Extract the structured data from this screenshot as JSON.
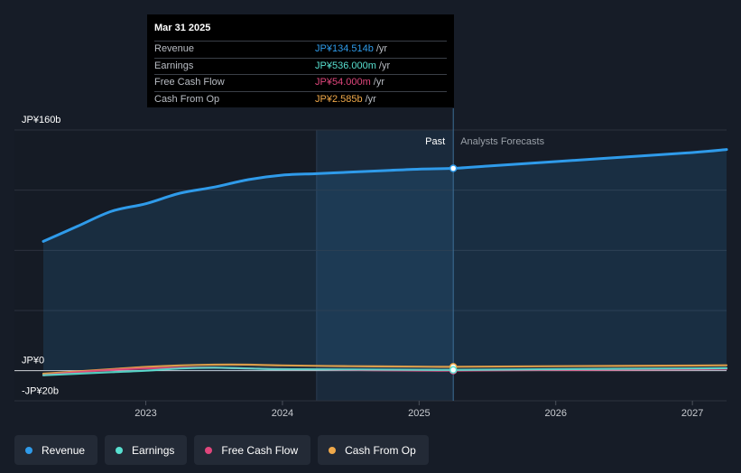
{
  "tooltip": {
    "date": "Mar 31 2025",
    "rows": [
      {
        "label": "Revenue",
        "value": "JP¥134.514b",
        "unit": "/yr",
        "color": "#2f9bea"
      },
      {
        "label": "Earnings",
        "value": "JP¥536.000m",
        "unit": "/yr",
        "color": "#58e0d0"
      },
      {
        "label": "Free Cash Flow",
        "value": "JP¥54.000m",
        "unit": "/yr",
        "color": "#e0467c"
      },
      {
        "label": "Cash From Op",
        "value": "JP¥2.585b",
        "unit": "/yr",
        "color": "#f0a94a"
      }
    ]
  },
  "chart_data": {
    "type": "line",
    "y_unit_labels": {
      "top": "JP¥160b",
      "zero": "JP¥0",
      "bottom": "-JP¥20b"
    },
    "ylim": [
      -20,
      160
    ],
    "xlim": [
      2022.25,
      2027.25
    ],
    "x_ticks": [
      2023,
      2024,
      2025,
      2026,
      2027
    ],
    "x_tick_labels": [
      "2023",
      "2024",
      "2025",
      "2026",
      "2027"
    ],
    "divider_x": 2025.25,
    "forecast_shade_start": 2024.25,
    "past_label": "Past",
    "forecast_label": "Analysts Forecasts",
    "grid": true,
    "series": [
      {
        "name": "Revenue",
        "color": "#2f9bea",
        "x": [
          2022.25,
          2022.5,
          2022.75,
          2023.0,
          2023.25,
          2023.5,
          2023.75,
          2024.0,
          2024.25,
          2024.5,
          2024.75,
          2025.0,
          2025.25,
          2025.5,
          2025.75,
          2026.0,
          2026.5,
          2027.0,
          2027.25
        ],
        "y": [
          86,
          96,
          106,
          111,
          118,
          122,
          127,
          130,
          131,
          132,
          133,
          134,
          134.5,
          136,
          137.5,
          139,
          142,
          145,
          147
        ]
      },
      {
        "name": "Earnings",
        "color": "#58e0d0",
        "x": [
          2022.25,
          2022.5,
          2022.75,
          2023.0,
          2023.25,
          2023.5,
          2023.75,
          2024.0,
          2024.5,
          2025.0,
          2025.25,
          2026.0,
          2027.0,
          2027.25
        ],
        "y": [
          -3,
          -2,
          -1,
          0,
          1.5,
          2,
          1.5,
          1,
          0.8,
          0.6,
          0.536,
          1,
          1.5,
          1.7
        ]
      },
      {
        "name": "Free Cash Flow",
        "color": "#e0467c",
        "x": [
          2022.25,
          2022.5,
          2022.75,
          2023.0,
          2023.25,
          2023.5,
          2023.75,
          2024.0,
          2024.5,
          2025.0,
          2025.25,
          2026.0,
          2027.0,
          2027.25
        ],
        "y": [
          -3,
          -1,
          0.5,
          1.5,
          2,
          2,
          1.5,
          1,
          0.5,
          0.1,
          0.054,
          0.5,
          1,
          1.2
        ]
      },
      {
        "name": "Cash From Op",
        "color": "#f0a94a",
        "x": [
          2022.25,
          2022.5,
          2022.75,
          2023.0,
          2023.25,
          2023.5,
          2023.75,
          2024.0,
          2024.5,
          2025.0,
          2025.25,
          2026.0,
          2027.0,
          2027.25
        ],
        "y": [
          -2,
          -0.5,
          1,
          2.5,
          3.5,
          4,
          4,
          3.5,
          3,
          2.7,
          2.585,
          3,
          3.4,
          3.6
        ]
      }
    ]
  },
  "legend": [
    {
      "label": "Revenue",
      "color": "#2f9bea"
    },
    {
      "label": "Earnings",
      "color": "#58e0d0"
    },
    {
      "label": "Free Cash Flow",
      "color": "#e0467c"
    },
    {
      "label": "Cash From Op",
      "color": "#f0a94a"
    }
  ]
}
